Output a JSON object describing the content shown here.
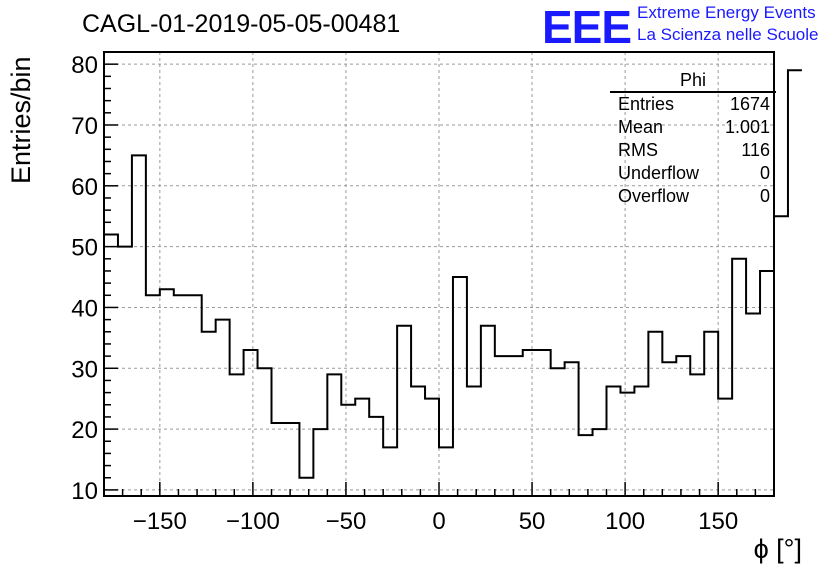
{
  "title": "CAGL-01-2019-05-05-00481",
  "logo": {
    "mark": "EEE",
    "line1": "Extreme Energy Events",
    "line2": "La Scienza nelle Scuole",
    "color": "#1a1aff"
  },
  "stats": {
    "name": "Phi",
    "rows": [
      {
        "label": "Entries",
        "value": "1674"
      },
      {
        "label": "Mean",
        "value": "1.001"
      },
      {
        "label": "RMS",
        "value": "116"
      },
      {
        "label": "Underflow",
        "value": "0"
      },
      {
        "label": "Overflow",
        "value": "0"
      }
    ]
  },
  "chart_data": {
    "type": "histogram",
    "xlabel": "ϕ [°]",
    "ylabel": "Entries/bin",
    "xlim": [
      -180,
      180
    ],
    "ylim": [
      9,
      82
    ],
    "bin_width": 7.5,
    "bin_edges_start": -180,
    "values": [
      52,
      50,
      65,
      42,
      43,
      42,
      42,
      36,
      38,
      29,
      33,
      30,
      21,
      21,
      12,
      20,
      29,
      24,
      25,
      22,
      17,
      37,
      27,
      25,
      17,
      45,
      27,
      37,
      32,
      32,
      33,
      33,
      30,
      31,
      19,
      20,
      27,
      26,
      27,
      36,
      31,
      32,
      29,
      36,
      25,
      48,
      39,
      46,
      55,
      79
    ],
    "x_ticks": [
      -150,
      -100,
      -50,
      0,
      50,
      100,
      150
    ],
    "x_tick_labels": [
      "−150",
      "−100",
      "−50",
      "0",
      "50",
      "100",
      "150"
    ],
    "y_ticks": [
      10,
      20,
      30,
      40,
      50,
      60,
      70,
      80
    ],
    "grid": true,
    "line_color": "#000000",
    "grid_color": "#9a9a9a"
  }
}
